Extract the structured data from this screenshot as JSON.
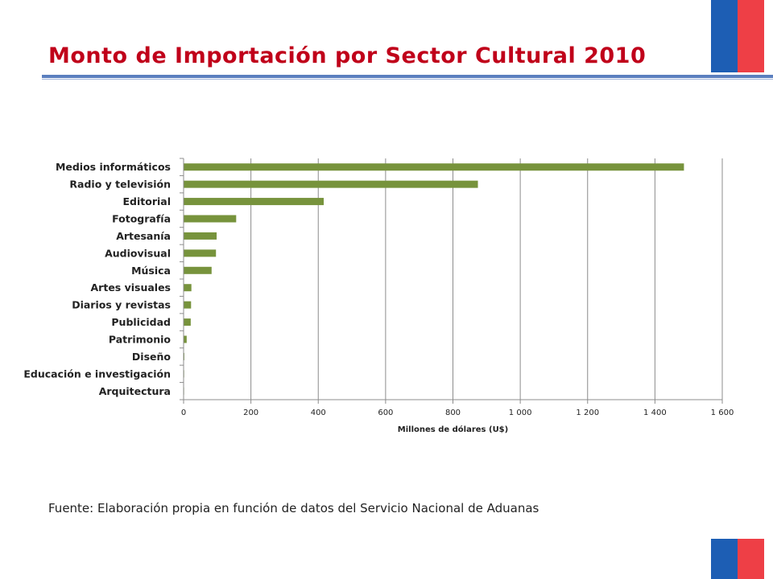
{
  "page": {
    "title": "Monto de Importación por Sector Cultural 2010",
    "source": "Fuente: Elaboración propia en función de datos del Servicio Nacional de Aduanas"
  },
  "colors": {
    "title": "#c0001a",
    "bar": "#77933c",
    "rule": "#5b7fbf",
    "flag_blue": "#1d5eb4",
    "flag_red": "#ee3f46"
  },
  "chart_data": {
    "type": "bar",
    "orientation": "horizontal",
    "categories": [
      "Medios informáticos",
      "Radio y televisión",
      "Editorial",
      "Fotografía",
      "Artesanía",
      "Audiovisual",
      "Música",
      "Artes visuales",
      "Diarios y revistas",
      "Publicidad",
      "Patrimonio",
      "Diseño",
      "Educación e investigación",
      "Arquitectura"
    ],
    "values": [
      1485,
      873,
      415,
      155,
      97,
      95,
      82,
      22,
      21,
      20,
      8,
      1,
      0.5,
      0.3
    ],
    "xlabel": "Millones de dólares (U$)",
    "xlim": [
      0,
      1600
    ],
    "xticks": [
      0,
      200,
      400,
      600,
      800,
      1000,
      1200,
      1400,
      1600
    ],
    "xtick_labels": [
      "0",
      "200",
      "400",
      "600",
      "800",
      "1 000",
      "1 200",
      "1 400",
      "1 600"
    ],
    "grid": "vertical",
    "legend": "none"
  }
}
